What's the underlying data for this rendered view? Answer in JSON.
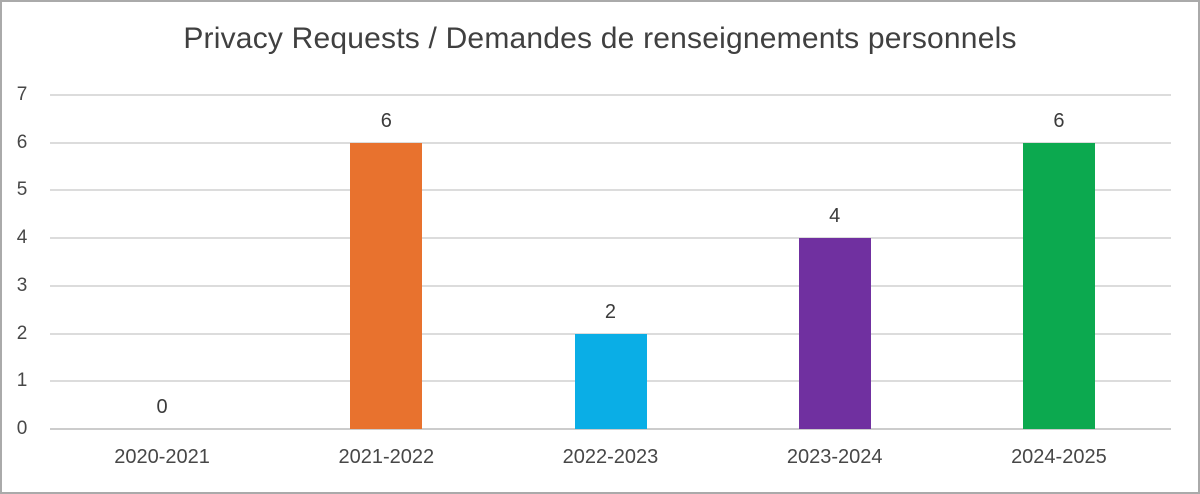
{
  "chart_data": {
    "type": "bar",
    "title": "Privacy Requests / Demandes de renseignements personnels",
    "categories": [
      "2020-2021",
      "2021-2022",
      "2022-2023",
      "2023-2024",
      "2024-2025"
    ],
    "values": [
      0,
      6,
      2,
      4,
      6
    ],
    "data_labels": [
      "0",
      "6",
      "2",
      "4",
      "6"
    ],
    "bar_colors": [
      null,
      "#e8722e",
      "#0aaee6",
      "#7030a0",
      "#0ca94f"
    ],
    "xlabel": "",
    "ylabel": "",
    "ylim": [
      0,
      7
    ],
    "yticks": [
      0,
      1,
      2,
      3,
      4,
      5,
      6,
      7
    ],
    "grid": true,
    "legend": false
  },
  "style": {
    "title_color": "#404040",
    "axis_text_color": "#474747",
    "data_label_color": "#3b3b3b",
    "gridline_color": "#dcdcdc",
    "axis_line_color": "#cccccc",
    "frame_border_color": "#aaaaaa",
    "background_color": "#ffffff"
  }
}
